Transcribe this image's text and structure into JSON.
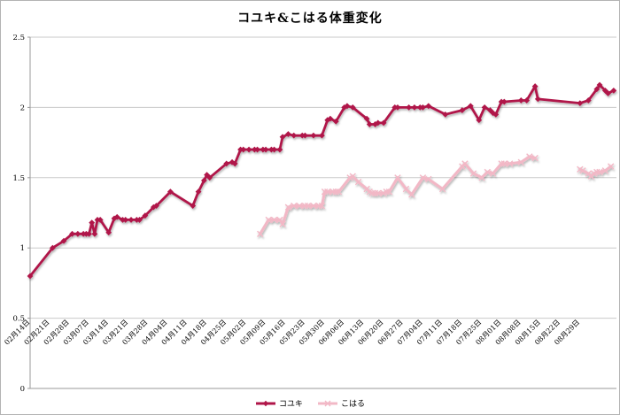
{
  "chart_data": {
    "type": "line",
    "title": "コユキ&こはる体重変化",
    "grid": true,
    "legend_position": "bottom-center",
    "grid_color": "#c9c9c9",
    "axis_color": "#999999",
    "text_color": "#000000",
    "x_axis": {
      "unit": "date",
      "tick_interval_days": 7,
      "label_rotation_deg": -45,
      "tick_labels": [
        "02月14日",
        "02月21日",
        "02月28日",
        "03月07日",
        "03月14日",
        "03月21日",
        "03月28日",
        "04月04日",
        "04月11日",
        "04月18日",
        "04月25日",
        "05月02日",
        "05月09日",
        "05月16日",
        "05月23日",
        "05月30日",
        "06月06日",
        "06月13日",
        "06月20日",
        "06月27日",
        "07月04日",
        "07月11日",
        "07月18日",
        "07月25日",
        "08月01日",
        "08月08日",
        "08月15日",
        "08月22日",
        "08月29日"
      ]
    },
    "y_axis": {
      "min": 0,
      "max": 2.5,
      "step": 0.5,
      "tick_labels": [
        "0",
        "0.5",
        "1",
        "1.5",
        "2",
        "2.5"
      ]
    },
    "series": [
      {
        "name": "コユキ",
        "color": "#b01649",
        "marker": "diamond",
        "points": [
          [
            0,
            0.8
          ],
          [
            8,
            1.0
          ],
          [
            12,
            1.05
          ],
          [
            15,
            1.1
          ],
          [
            17,
            1.1
          ],
          [
            19,
            1.1
          ],
          [
            20,
            1.1
          ],
          [
            21,
            1.1
          ],
          [
            22,
            1.18
          ],
          [
            23,
            1.1
          ],
          [
            24,
            1.2
          ],
          [
            25,
            1.2
          ],
          [
            28,
            1.11
          ],
          [
            30,
            1.21
          ],
          [
            31,
            1.22
          ],
          [
            33,
            1.2
          ],
          [
            34,
            1.2
          ],
          [
            36,
            1.2
          ],
          [
            38,
            1.2
          ],
          [
            39,
            1.2
          ],
          [
            41,
            1.23
          ],
          [
            44,
            1.29
          ],
          [
            45,
            1.3
          ],
          [
            50,
            1.4
          ],
          [
            58,
            1.3
          ],
          [
            60,
            1.4
          ],
          [
            62,
            1.48
          ],
          [
            63,
            1.52
          ],
          [
            64,
            1.5
          ],
          [
            70,
            1.6
          ],
          [
            72,
            1.61
          ],
          [
            73,
            1.6
          ],
          [
            75,
            1.7
          ],
          [
            76,
            1.7
          ],
          [
            78,
            1.7
          ],
          [
            80,
            1.7
          ],
          [
            81,
            1.7
          ],
          [
            83,
            1.7
          ],
          [
            84,
            1.7
          ],
          [
            86,
            1.7
          ],
          [
            87,
            1.7
          ],
          [
            89,
            1.7
          ],
          [
            90,
            1.79
          ],
          [
            92,
            1.81
          ],
          [
            94,
            1.8
          ],
          [
            97,
            1.8
          ],
          [
            98,
            1.8
          ],
          [
            101,
            1.8
          ],
          [
            104,
            1.8
          ],
          [
            106,
            1.91
          ],
          [
            107,
            1.92
          ],
          [
            109,
            1.9
          ],
          [
            112,
            2.0
          ],
          [
            113,
            2.01
          ],
          [
            115,
            2.0
          ],
          [
            120,
            1.92
          ],
          [
            121,
            1.88
          ],
          [
            123,
            1.88
          ],
          [
            124,
            1.89
          ],
          [
            126,
            1.89
          ],
          [
            130,
            2.0
          ],
          [
            131,
            2.0
          ],
          [
            135,
            2.0
          ],
          [
            137,
            2.0
          ],
          [
            139,
            2.0
          ],
          [
            140,
            2.0
          ],
          [
            142,
            2.01
          ],
          [
            148,
            1.95
          ],
          [
            154,
            1.98
          ],
          [
            157,
            2.01
          ],
          [
            160,
            1.91
          ],
          [
            162,
            2.0
          ],
          [
            164,
            1.98
          ],
          [
            165,
            1.96
          ],
          [
            166,
            1.95
          ],
          [
            168,
            2.04
          ],
          [
            169,
            2.04
          ],
          [
            175,
            2.05
          ],
          [
            177,
            2.05
          ],
          [
            180,
            2.15
          ],
          [
            181,
            2.06
          ],
          [
            196,
            2.03
          ],
          [
            199,
            2.05
          ],
          [
            202,
            2.13
          ],
          [
            203,
            2.16
          ],
          [
            205,
            2.12
          ],
          [
            206,
            2.1
          ],
          [
            208,
            2.12
          ]
        ]
      },
      {
        "name": "こはる",
        "color": "#f2b8c6",
        "marker": "x",
        "points": [
          [
            82,
            1.1
          ],
          [
            85,
            1.2
          ],
          [
            87,
            1.2
          ],
          [
            89,
            1.2
          ],
          [
            90,
            1.17
          ],
          [
            92,
            1.29
          ],
          [
            94,
            1.3
          ],
          [
            96,
            1.3
          ],
          [
            98,
            1.3
          ],
          [
            99,
            1.3
          ],
          [
            101,
            1.3
          ],
          [
            103,
            1.3
          ],
          [
            104,
            1.3
          ],
          [
            105,
            1.4
          ],
          [
            106,
            1.4
          ],
          [
            108,
            1.4
          ],
          [
            109,
            1.4
          ],
          [
            110,
            1.4
          ],
          [
            114,
            1.5
          ],
          [
            115,
            1.51
          ],
          [
            117,
            1.47
          ],
          [
            120,
            1.42
          ],
          [
            121,
            1.4
          ],
          [
            122,
            1.39
          ],
          [
            123,
            1.39
          ],
          [
            124,
            1.39
          ],
          [
            126,
            1.39
          ],
          [
            127,
            1.4
          ],
          [
            128,
            1.4
          ],
          [
            131,
            1.5
          ],
          [
            134,
            1.42
          ],
          [
            136,
            1.38
          ],
          [
            140,
            1.5
          ],
          [
            142,
            1.49
          ],
          [
            147,
            1.42
          ],
          [
            154,
            1.58
          ],
          [
            155,
            1.6
          ],
          [
            158,
            1.53
          ],
          [
            161,
            1.5
          ],
          [
            163,
            1.54
          ],
          [
            165,
            1.53
          ],
          [
            168,
            1.6
          ],
          [
            169,
            1.6
          ],
          [
            171,
            1.6
          ],
          [
            175,
            1.61
          ],
          [
            178,
            1.65
          ],
          [
            180,
            1.64
          ],
          null,
          [
            196,
            1.56
          ],
          [
            197,
            1.55
          ],
          [
            199,
            1.53
          ],
          [
            200,
            1.51
          ],
          [
            201,
            1.53
          ],
          [
            202,
            1.54
          ],
          [
            203,
            1.54
          ],
          [
            205,
            1.55
          ],
          [
            207,
            1.58
          ]
        ]
      }
    ]
  }
}
